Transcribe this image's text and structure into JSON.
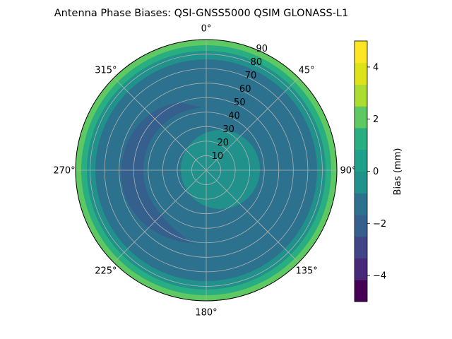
{
  "chart_data": {
    "type": "polar-filled-contour",
    "title": "Antenna Phase Biases: QSI-GNSS5000    QSIM GLONASS-L1",
    "angular_tick_labels": [
      "0°",
      "45°",
      "90°",
      "135°",
      "180°",
      "225°",
      "270°",
      "315°"
    ],
    "angular_ticks_deg": [
      0,
      45,
      90,
      135,
      180,
      225,
      270,
      315
    ],
    "radial_tick_labels": [
      "10",
      "20",
      "30",
      "40",
      "50",
      "60",
      "70",
      "80",
      "90"
    ],
    "radial_ticks": [
      10,
      20,
      30,
      40,
      50,
      60,
      70,
      80,
      90
    ],
    "radial_range": [
      0,
      90
    ],
    "grid": true,
    "colorbar": {
      "label": "Bias (mm)",
      "range": [
        -5,
        5
      ],
      "tick_labels": [
        "−4",
        "−2",
        "0",
        "2",
        "4"
      ],
      "ticks": [
        -4,
        -2,
        0,
        2,
        4
      ],
      "levels": [
        -5,
        -4.375,
        -3.75,
        -3.125,
        -2.5,
        -1.875,
        -1.25,
        -0.625,
        0,
        0.625,
        1.25,
        1.875,
        2.5,
        3.125,
        3.75,
        4.375,
        5
      ],
      "colors": [
        "#440154",
        "#482979",
        "#414487",
        "#355f8d",
        "#2c728e",
        "#21918c",
        "#1fa088",
        "#28ae80",
        "#5ec962",
        "#addc30",
        "#dde318",
        "#fde725"
      ]
    },
    "bands": [
      {
        "r_from": 0,
        "r_to": 38,
        "bias": 0.3,
        "color": "#21918c"
      },
      {
        "r_from": 38,
        "r_to": 58,
        "bias": -0.3,
        "color": "#2c728e"
      },
      {
        "r_from": 58,
        "r_to": 76,
        "bias": -0.3,
        "color": "#2c728e"
      },
      {
        "r_from": 76,
        "r_to": 82,
        "bias": 0.3,
        "color": "#21918c"
      },
      {
        "r_from": 82,
        "r_to": 86,
        "bias": 1.5,
        "color": "#28ae80"
      },
      {
        "r_from": 86,
        "r_to": 90,
        "bias": 2.5,
        "color": "#5ec962"
      }
    ],
    "crescent": {
      "center_az_deg": 285,
      "bias": -1.5,
      "color": "#355f8d"
    }
  }
}
